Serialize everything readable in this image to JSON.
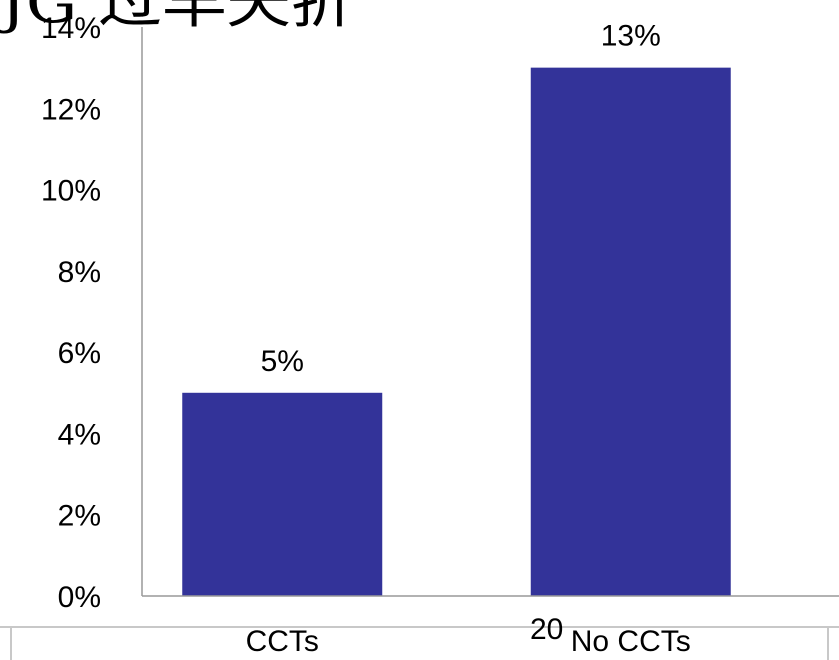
{
  "slide": {
    "title_fragment": "JG 过早夭折",
    "page_number": "20"
  },
  "chart_data": {
    "type": "bar",
    "categories": [
      "CCTs",
      "No CCTs"
    ],
    "values": [
      5,
      13
    ],
    "data_labels": [
      "5%",
      "13%"
    ],
    "yticks": [
      0,
      2,
      4,
      6,
      8,
      10,
      12,
      14
    ],
    "ytick_labels": [
      "0%",
      "2%",
      "4%",
      "6%",
      "8%",
      "10%",
      "12%",
      "14%"
    ],
    "ylim": [
      0,
      14
    ],
    "title": "",
    "xlabel": "",
    "ylabel": "",
    "grid": false,
    "bar_color": "#333399"
  }
}
